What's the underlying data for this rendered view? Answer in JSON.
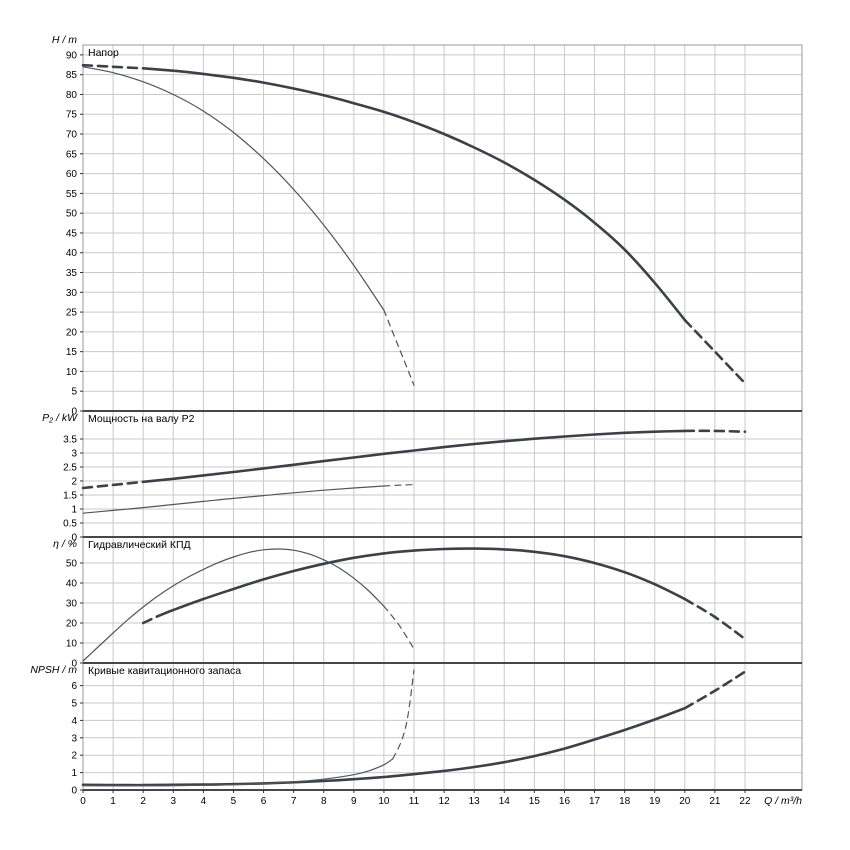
{
  "styles": {
    "background": "#ffffff",
    "grid_color": "#c9c9c9",
    "border_color": "#9a9a9a",
    "axis_color": "#474747",
    "tick_color": "#333333",
    "curve_color": "#3c4148",
    "thin_curve_color": "#50555c",
    "text_color": "#000000"
  },
  "xaxis": {
    "label": "Q / m³/h",
    "ticks": [
      0,
      1,
      2,
      3,
      4,
      5,
      6,
      7,
      8,
      9,
      10,
      11,
      12,
      13,
      14,
      15,
      16,
      17,
      18,
      19,
      20,
      21,
      22
    ],
    "xlim": [
      0,
      23.9
    ]
  },
  "chart_data": [
    {
      "type": "line",
      "title": "Напор",
      "ylabel": "H / m",
      "ylim": [
        0,
        92.5
      ],
      "yticks": [
        0,
        5,
        10,
        15,
        20,
        25,
        30,
        35,
        40,
        45,
        50,
        55,
        60,
        65,
        70,
        75,
        80,
        85,
        90
      ],
      "series": [
        {
          "name": "head-curve-main",
          "weight": "thick",
          "segments": [
            {
              "dash": true,
              "points": [
                [
                  0,
                  87.4
                ],
                [
                  1,
                  87.0
                ],
                [
                  2,
                  86.6
                ]
              ]
            },
            {
              "dash": false,
              "points": [
                [
                  2,
                  86.6
                ],
                [
                  3,
                  86.0
                ],
                [
                  4,
                  85.2
                ],
                [
                  5,
                  84.2
                ],
                [
                  6,
                  83.0
                ],
                [
                  7,
                  81.5
                ],
                [
                  8,
                  79.8
                ],
                [
                  9,
                  77.8
                ],
                [
                  10,
                  75.6
                ],
                [
                  11,
                  73.0
                ],
                [
                  12,
                  70.0
                ],
                [
                  13,
                  66.6
                ],
                [
                  14,
                  62.8
                ],
                [
                  15,
                  58.4
                ],
                [
                  16,
                  53.4
                ],
                [
                  17,
                  47.6
                ],
                [
                  18,
                  40.8
                ],
                [
                  19,
                  32.4
                ],
                [
                  20,
                  23.0
                ]
              ]
            },
            {
              "dash": true,
              "points": [
                [
                  20,
                  23.0
                ],
                [
                  21,
                  15.0
                ],
                [
                  22,
                  7.0
                ]
              ]
            }
          ]
        },
        {
          "name": "head-curve-reduced",
          "weight": "thin",
          "segments": [
            {
              "dash": false,
              "points": [
                [
                  0,
                  87.0
                ],
                [
                  1,
                  85.5
                ],
                [
                  2,
                  83.2
                ],
                [
                  3,
                  80.0
                ],
                [
                  4,
                  75.8
                ],
                [
                  5,
                  70.4
                ],
                [
                  6,
                  63.8
                ],
                [
                  7,
                  56.0
                ],
                [
                  8,
                  47.0
                ],
                [
                  9,
                  36.8
                ],
                [
                  10,
                  25.5
                ]
              ]
            },
            {
              "dash": true,
              "points": [
                [
                  10,
                  25.5
                ],
                [
                  10.5,
                  16.0
                ],
                [
                  11,
                  6.5
                ]
              ]
            }
          ]
        }
      ]
    },
    {
      "type": "line",
      "title": "Мощность на валу P2",
      "ylabel": "P₂ / kW",
      "ylim": [
        0,
        4.5
      ],
      "yticks": [
        0,
        0.5,
        1,
        1.5,
        2,
        2.5,
        3,
        3.5
      ],
      "series": [
        {
          "name": "power-curve-main",
          "weight": "thick",
          "segments": [
            {
              "dash": true,
              "points": [
                [
                  0,
                  1.75
                ],
                [
                  1,
                  1.86
                ],
                [
                  2,
                  1.97
                ]
              ]
            },
            {
              "dash": false,
              "points": [
                [
                  2,
                  1.97
                ],
                [
                  3,
                  2.08
                ],
                [
                  4,
                  2.2
                ],
                [
                  5,
                  2.32
                ],
                [
                  6,
                  2.45
                ],
                [
                  7,
                  2.58
                ],
                [
                  8,
                  2.71
                ],
                [
                  9,
                  2.84
                ],
                [
                  10,
                  2.97
                ],
                [
                  11,
                  3.09
                ],
                [
                  12,
                  3.21
                ],
                [
                  13,
                  3.32
                ],
                [
                  14,
                  3.42
                ],
                [
                  15,
                  3.51
                ],
                [
                  16,
                  3.59
                ],
                [
                  17,
                  3.66
                ],
                [
                  18,
                  3.72
                ],
                [
                  19,
                  3.76
                ],
                [
                  20,
                  3.79
                ]
              ]
            },
            {
              "dash": true,
              "points": [
                [
                  20,
                  3.79
                ],
                [
                  21,
                  3.79
                ],
                [
                  22,
                  3.76
                ]
              ]
            }
          ]
        },
        {
          "name": "power-curve-reduced",
          "weight": "thin",
          "segments": [
            {
              "dash": false,
              "points": [
                [
                  0,
                  0.85
                ],
                [
                  1,
                  0.95
                ],
                [
                  2,
                  1.05
                ],
                [
                  3,
                  1.16
                ],
                [
                  4,
                  1.27
                ],
                [
                  5,
                  1.38
                ],
                [
                  6,
                  1.48
                ],
                [
                  7,
                  1.58
                ],
                [
                  8,
                  1.67
                ],
                [
                  9,
                  1.75
                ],
                [
                  10,
                  1.82
                ]
              ]
            },
            {
              "dash": true,
              "points": [
                [
                  10,
                  1.82
                ],
                [
                  10.5,
                  1.85
                ],
                [
                  11,
                  1.87
                ]
              ]
            }
          ]
        }
      ]
    },
    {
      "type": "line",
      "title": "Гидравлический КПД",
      "ylabel": "η / %",
      "ylim": [
        0,
        63
      ],
      "yticks": [
        0,
        10,
        20,
        30,
        40,
        50
      ],
      "series": [
        {
          "name": "efficiency-curve-main",
          "weight": "thick",
          "segments": [
            {
              "dash": true,
              "points": [
                [
                  2,
                  20.0
                ],
                [
                  2.5,
                  23.5
                ]
              ]
            },
            {
              "dash": false,
              "points": [
                [
                  2.5,
                  23.5
                ],
                [
                  3,
                  26.5
                ],
                [
                  4,
                  32.0
                ],
                [
                  5,
                  37.0
                ],
                [
                  6,
                  41.8
                ],
                [
                  7,
                  46.0
                ],
                [
                  8,
                  49.6
                ],
                [
                  9,
                  52.6
                ],
                [
                  10,
                  54.8
                ],
                [
                  11,
                  56.2
                ],
                [
                  12,
                  57.0
                ],
                [
                  13,
                  57.2
                ],
                [
                  14,
                  56.8
                ],
                [
                  15,
                  55.6
                ],
                [
                  16,
                  53.4
                ],
                [
                  17,
                  50.0
                ],
                [
                  18,
                  45.4
                ],
                [
                  19,
                  39.4
                ],
                [
                  20,
                  32.0
                ]
              ]
            },
            {
              "dash": true,
              "points": [
                [
                  20,
                  32.0
                ],
                [
                  21,
                  23.0
                ],
                [
                  22,
                  12.0
                ]
              ]
            }
          ]
        },
        {
          "name": "efficiency-curve-reduced",
          "weight": "thin",
          "segments": [
            {
              "dash": false,
              "points": [
                [
                  0,
                  1.0
                ],
                [
                  0.5,
                  8.0
                ],
                [
                  1,
                  15.0
                ],
                [
                  1.5,
                  21.8
                ],
                [
                  2,
                  28.0
                ],
                [
                  2.5,
                  33.6
                ],
                [
                  3,
                  38.6
                ],
                [
                  3.5,
                  43.0
                ],
                [
                  4,
                  46.8
                ],
                [
                  4.5,
                  50.2
                ],
                [
                  5,
                  53.0
                ],
                [
                  5.5,
                  55.2
                ],
                [
                  6,
                  56.6
                ],
                [
                  6.5,
                  57.0
                ],
                [
                  7,
                  56.4
                ],
                [
                  7.5,
                  54.6
                ],
                [
                  8,
                  51.6
                ],
                [
                  8.5,
                  47.6
                ],
                [
                  9,
                  42.4
                ],
                [
                  9.5,
                  36.0
                ],
                [
                  10,
                  28.4
                ]
              ]
            },
            {
              "dash": true,
              "points": [
                [
                  10,
                  28.4
                ],
                [
                  10.5,
                  19.0
                ],
                [
                  11,
                  7.0
                ]
              ]
            }
          ]
        }
      ]
    },
    {
      "type": "line",
      "title": "Кривые кавитационного запаса",
      "ylabel": "NPSH / m",
      "ylim": [
        0,
        7.3
      ],
      "yticks": [
        0,
        1,
        2,
        3,
        4,
        5,
        6
      ],
      "series": [
        {
          "name": "npsh-curve-main",
          "weight": "thick",
          "segments": [
            {
              "dash": false,
              "points": [
                [
                  0,
                  0.3
                ],
                [
                  2,
                  0.28
                ],
                [
                  4,
                  0.31
                ],
                [
                  6,
                  0.38
                ],
                [
                  8,
                  0.52
                ],
                [
                  10,
                  0.75
                ],
                [
                  12,
                  1.1
                ],
                [
                  13,
                  1.32
                ],
                [
                  14,
                  1.6
                ],
                [
                  15,
                  1.95
                ],
                [
                  16,
                  2.38
                ],
                [
                  17,
                  2.9
                ],
                [
                  18,
                  3.45
                ],
                [
                  19,
                  4.05
                ],
                [
                  20,
                  4.7
                ]
              ]
            },
            {
              "dash": true,
              "points": [
                [
                  20,
                  4.7
                ],
                [
                  21,
                  5.7
                ],
                [
                  22,
                  6.8
                ]
              ]
            }
          ]
        },
        {
          "name": "npsh-curve-reduced",
          "weight": "thin",
          "segments": [
            {
              "dash": false,
              "points": [
                [
                  0,
                  0.25
                ],
                [
                  2,
                  0.24
                ],
                [
                  4,
                  0.27
                ],
                [
                  5,
                  0.31
                ],
                [
                  6,
                  0.37
                ],
                [
                  7,
                  0.47
                ],
                [
                  8,
                  0.62
                ],
                [
                  9,
                  0.88
                ],
                [
                  9.5,
                  1.1
                ],
                [
                  10,
                  1.45
                ],
                [
                  10.3,
                  1.8
                ]
              ]
            },
            {
              "dash": true,
              "points": [
                [
                  10.3,
                  1.8
                ],
                [
                  10.6,
                  2.9
                ],
                [
                  10.8,
                  4.3
                ],
                [
                  11,
                  6.9
                ]
              ]
            }
          ]
        }
      ]
    }
  ]
}
